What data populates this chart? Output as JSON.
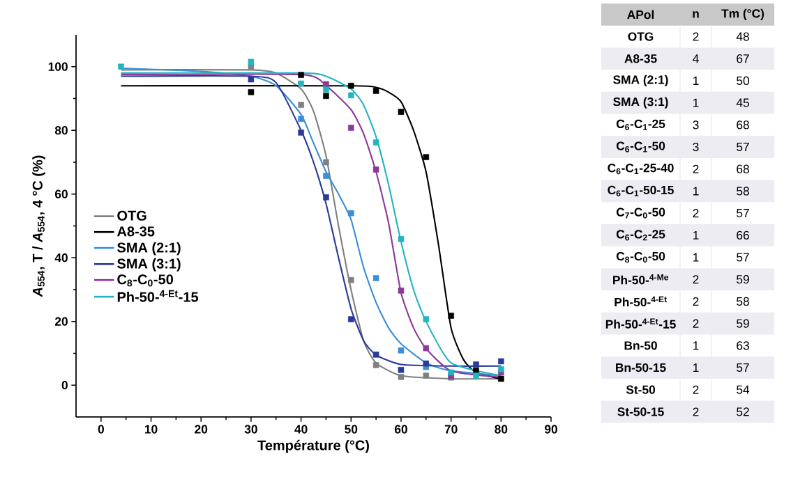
{
  "chart_data": [
    {
      "type": "line",
      "xlabel": "Température (°C)",
      "ylabel": "*A*$_{554}$, T / *A*$_{554}$, 4 °C (%)",
      "xlim": [
        -5,
        90
      ],
      "ylim": [
        -10,
        110
      ],
      "xticks": [
        0,
        10,
        20,
        30,
        40,
        50,
        60,
        70,
        80,
        90
      ],
      "yticks": [
        0,
        20,
        40,
        60,
        80,
        100
      ],
      "legend": "left",
      "grid": false,
      "series": [
        {
          "name": "OTG",
          "type": "line",
          "marker": "none",
          "color": "#808080",
          "x": [
            4,
            30,
            35,
            40,
            42.5,
            45,
            47.5,
            50,
            52.5,
            55,
            60,
            70,
            80
          ],
          "values": [
            99,
            99,
            98,
            93,
            86,
            72,
            50,
            30,
            14,
            7,
            3,
            2,
            2
          ]
        },
        {
          "name": "A8-35",
          "type": "line",
          "marker": "none",
          "color": "#000000",
          "x": [
            4,
            50,
            55,
            57.5,
            60,
            62.5,
            65,
            67.5,
            70,
            72.5,
            75,
            80
          ],
          "values": [
            94,
            94,
            93.5,
            92,
            89,
            80,
            67,
            44,
            18,
            8,
            4,
            2
          ]
        },
        {
          "name": "SMA (2:1)",
          "type": "line",
          "marker": "none",
          "color": "#3a8fd8",
          "x": [
            4,
            20,
            30,
            35,
            40,
            42.5,
            45,
            47.5,
            50,
            52.5,
            55,
            57.5,
            60,
            65,
            70,
            80
          ],
          "values": [
            99.5,
            98.5,
            97,
            94,
            85,
            76,
            67,
            60,
            52,
            37,
            26,
            18,
            13,
            7,
            4.5,
            3
          ]
        },
        {
          "name": "SMA (3:1)",
          "type": "line",
          "marker": "none",
          "color": "#2a3a9a",
          "x": [
            4,
            30,
            35,
            40,
            42.5,
            45,
            47.5,
            50,
            52.5,
            55,
            60,
            70,
            80
          ],
          "values": [
            97,
            97,
            95,
            80,
            70,
            57,
            40,
            24,
            14,
            9.5,
            6.5,
            6,
            6
          ]
        },
        {
          "name": "C$_{8}$-C$_{0}$-50",
          "type": "line",
          "marker": "none",
          "color": "#8b3a9b",
          "x": [
            4,
            40,
            45,
            50,
            52.5,
            55,
            57.5,
            60,
            62.5,
            65,
            70,
            80
          ],
          "values": [
            97.5,
            97.5,
            94,
            86.5,
            79,
            67,
            51,
            29,
            18,
            11.5,
            4.5,
            2.5
          ]
        },
        {
          "name": "Ph-50-$^{4-Et}$-15",
          "type": "line",
          "marker": "none",
          "color": "#22b5c0",
          "x": [
            4,
            40,
            45,
            50,
            52.5,
            55,
            57.5,
            60,
            62.5,
            65,
            70,
            80
          ],
          "values": [
            98,
            98,
            97,
            93,
            88,
            78,
            63,
            45,
            30,
            20,
            7,
            3
          ]
        },
        {
          "type": "scatter",
          "marker": "square",
          "color": "#808080",
          "x": [
            30,
            40,
            45,
            50,
            55,
            60,
            65,
            70
          ],
          "values": [
            100,
            88,
            70,
            33,
            6.3,
            2.6,
            3,
            2.4
          ]
        },
        {
          "type": "scatter",
          "marker": "square",
          "color": "#000000",
          "x": [
            30,
            40,
            45,
            50,
            55,
            60,
            65,
            70,
            75,
            80
          ],
          "values": [
            92,
            97.4,
            90.8,
            94,
            92.4,
            85.8,
            71.6,
            21.8,
            4.6,
            2
          ]
        },
        {
          "type": "scatter",
          "marker": "square",
          "color": "#3a8fd8",
          "x": [
            40,
            45,
            50,
            55,
            60,
            65
          ],
          "values": [
            83.6,
            65.7,
            54,
            33.6,
            10.9,
            5.7
          ]
        },
        {
          "type": "scatter",
          "marker": "square",
          "color": "#2a3a9a",
          "x": [
            30,
            40,
            45,
            50,
            55,
            60,
            65,
            75,
            80
          ],
          "values": [
            96,
            79.3,
            59,
            20.7,
            9.6,
            4.8,
            6.8,
            6.5,
            7.5
          ]
        },
        {
          "type": "scatter",
          "marker": "square",
          "color": "#8b3a9b",
          "x": [
            45,
            50,
            55,
            60,
            65,
            70,
            80
          ],
          "values": [
            94.5,
            80.8,
            67.7,
            29.7,
            11.6,
            2.8,
            4
          ]
        },
        {
          "type": "scatter",
          "marker": "square",
          "color": "#22b5c0",
          "x": [
            4,
            30,
            40,
            45,
            50,
            55,
            60,
            65,
            70,
            75,
            80
          ],
          "values": [
            100,
            101.5,
            94.7,
            92.8,
            91,
            76.2,
            45.9,
            20.7,
            4,
            3,
            5
          ]
        }
      ]
    },
    {
      "type": "heatmap",
      "ylabel": "APol",
      "categories": [
        "n",
        "Tm (°C)"
      ],
      "data_labels": true,
      "y_categories": [
        "OTG",
        "A8-35",
        "SMA (2:1)",
        "SMA (3:1)",
        "C$_{6}$-C$_{1}$-25",
        "C$_{6}$-C$_{1}$-50",
        "C$_{6}$-C$_{1}$-25-40",
        "C$_{6}$-C$_{1}$-50-15",
        "C$_{7}$-C$_{0}$-50",
        "C$_{6}$-C$_{2}$-25",
        "C$_{8}$-C$_{0}$-50",
        "Ph-50-$^{4-Me}$",
        "Ph-50-$^{4-Et}$",
        "Ph-50-$^{4-Et}$-15",
        "Bn-50",
        "Bn-50-15",
        "St-50",
        "St-50-15"
      ],
      "cells": [
        [
          2,
          48
        ],
        [
          4,
          67
        ],
        [
          1,
          50
        ],
        [
          1,
          45
        ],
        [
          3,
          68
        ],
        [
          3,
          57
        ],
        [
          2,
          68
        ],
        [
          1,
          58
        ],
        [
          2,
          57
        ],
        [
          1,
          66
        ],
        [
          1,
          57
        ],
        [
          2,
          59
        ],
        [
          2,
          58
        ],
        [
          2,
          59
        ],
        [
          1,
          63
        ],
        [
          1,
          57
        ],
        [
          2,
          54
        ],
        [
          2,
          52
        ]
      ]
    }
  ]
}
